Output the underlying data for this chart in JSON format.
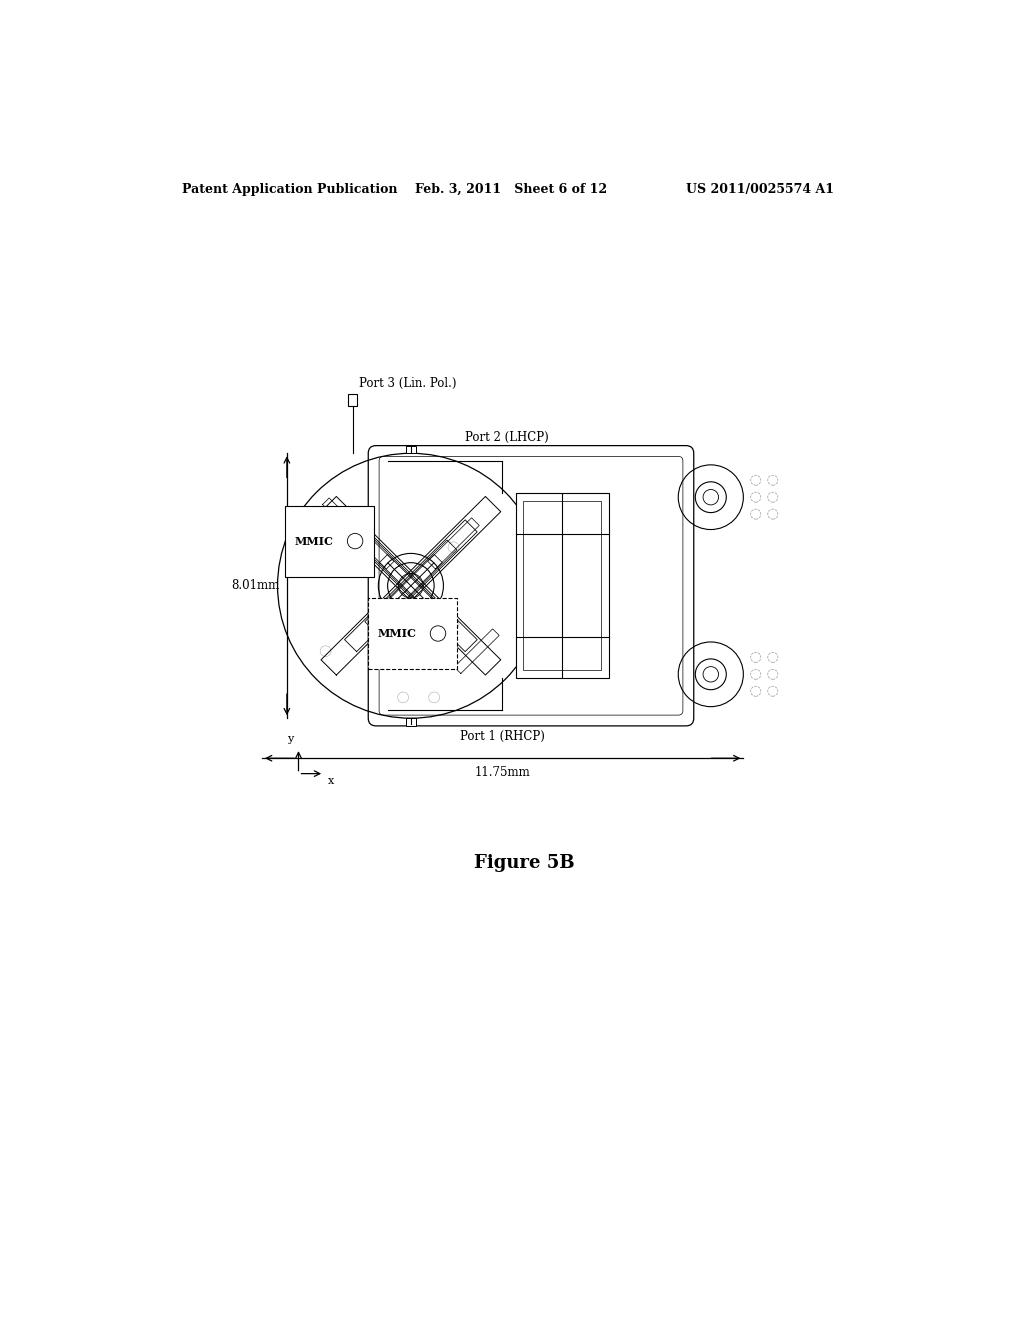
{
  "header_left": "Patent Application Publication",
  "header_mid": "Feb. 3, 2011   Sheet 6 of 12",
  "header_right": "US 2011/0025574 A1",
  "figure_label": "Figure 5B",
  "dim_vertical": "8.01mm",
  "dim_horizontal": "11.75mm",
  "port1_label": "Port 1 (RHCP)",
  "port2_label": "Port 2 (LHCP)",
  "port3_label": "Port 3 (Lin. Pol.)",
  "mmic_label": "MMIC",
  "bg_color": "#ffffff",
  "line_color": "#000000"
}
